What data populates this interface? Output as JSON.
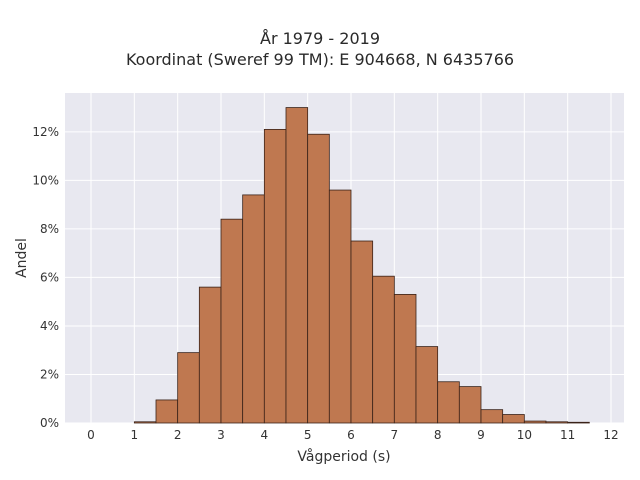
{
  "chart_data": {
    "type": "bar",
    "title_lines": [
      "År 1979 - 2019",
      "Koordinat (Sweref 99 TM): E 904668, N 6435766"
    ],
    "xlabel": "Vågperiod (s)",
    "ylabel": "Andel",
    "xlim": [
      -0.6,
      12.3
    ],
    "ylim": [
      0,
      13.6
    ],
    "x_ticks": [
      0,
      1,
      2,
      3,
      4,
      5,
      6,
      7,
      8,
      9,
      10,
      11,
      12
    ],
    "y_ticks": [
      0,
      2,
      4,
      6,
      8,
      10,
      12
    ],
    "y_tick_suffix": "%",
    "grid": true,
    "bin_width": 0.5,
    "bins": [
      {
        "x0": 1.0,
        "value": 0.05
      },
      {
        "x0": 1.5,
        "value": 0.95
      },
      {
        "x0": 2.0,
        "value": 2.9
      },
      {
        "x0": 2.5,
        "value": 5.6
      },
      {
        "x0": 3.0,
        "value": 8.4
      },
      {
        "x0": 3.5,
        "value": 9.4
      },
      {
        "x0": 4.0,
        "value": 12.1
      },
      {
        "x0": 4.5,
        "value": 13.0
      },
      {
        "x0": 5.0,
        "value": 11.9
      },
      {
        "x0": 5.5,
        "value": 9.6
      },
      {
        "x0": 6.0,
        "value": 7.5
      },
      {
        "x0": 6.5,
        "value": 6.05
      },
      {
        "x0": 7.0,
        "value": 5.3
      },
      {
        "x0": 7.5,
        "value": 3.15
      },
      {
        "x0": 8.0,
        "value": 1.7
      },
      {
        "x0": 8.5,
        "value": 1.5
      },
      {
        "x0": 9.0,
        "value": 0.55
      },
      {
        "x0": 9.5,
        "value": 0.35
      },
      {
        "x0": 10.0,
        "value": 0.08
      },
      {
        "x0": 10.5,
        "value": 0.05
      },
      {
        "x0": 11.0,
        "value": 0.03
      }
    ],
    "colors": {
      "bar_fill": "#bf7850",
      "bar_edge": "#3a2218",
      "plot_bg": "#e8e8f0",
      "grid": "#ffffff"
    }
  }
}
